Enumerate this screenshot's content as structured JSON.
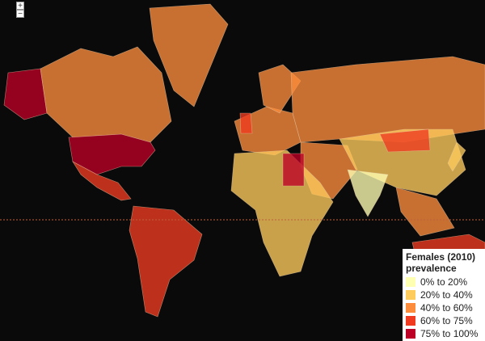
{
  "controls": {
    "zoom_in": "+",
    "zoom_out": "−"
  },
  "legend": {
    "title": "Females (2010) prevalence",
    "items": [
      {
        "label": "0% to 20%",
        "color": "#ffffb2"
      },
      {
        "label": "20% to 40%",
        "color": "#fecc5c"
      },
      {
        "label": "40% to 60%",
        "color": "#fd8d3c"
      },
      {
        "label": "60% to 75%",
        "color": "#f03b20"
      },
      {
        "label": "75% to 100%",
        "color": "#bd0026"
      }
    ]
  }
}
